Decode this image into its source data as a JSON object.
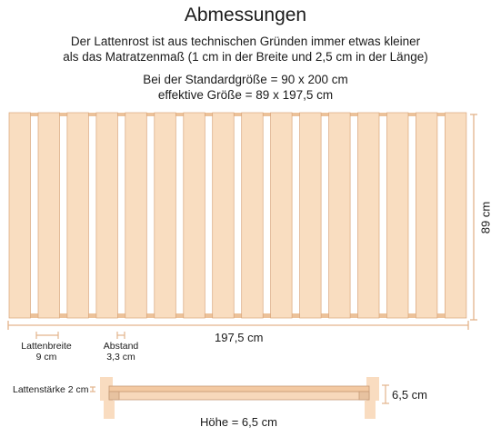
{
  "header": {
    "title": "Abmessungen",
    "subtitle_line1": "Der Lattenrost ist aus technischen Gründen immer etwas kleiner",
    "subtitle_line2": "als das Matratzenmaß (1 cm in der Breite und 2,5 cm in der Länge)",
    "standard_line1": "Bei der Standardgröße = 90 x 200 cm",
    "standard_line2": "effektive Größe = 89 x 197,5 cm"
  },
  "dimensions": {
    "length_label": "197,5 cm",
    "width_label": "89 cm",
    "slat_width_label_line1": "Lattenbreite",
    "slat_width_label_line2": "9 cm",
    "gap_label_line1": "Abstand",
    "gap_label_line2": "3,3 cm",
    "slat_thickness_label": "Lattenstärke 2 cm",
    "height_side_label": "6,5 cm",
    "height_label": "Höhe = 6,5 cm"
  },
  "colors": {
    "wood_light": "#f9ddc0",
    "wood_mid": "#f2c9a2",
    "wood_edge": "#d9a57a",
    "frame": "#e9bd92",
    "dimension_line": "#e3b48c"
  },
  "slats": {
    "count": 16
  }
}
